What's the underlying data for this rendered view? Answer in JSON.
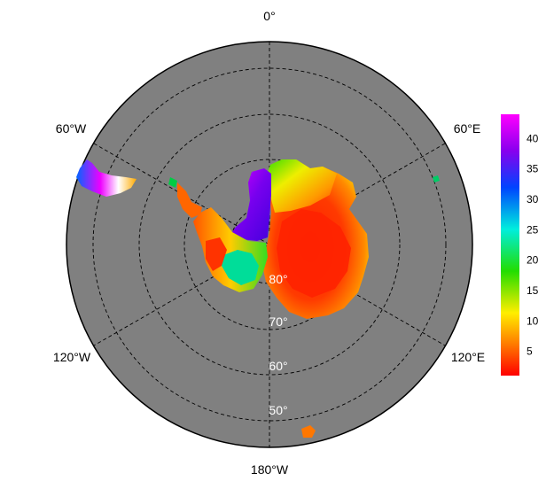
{
  "map": {
    "projection": "south-polar-stereographic",
    "background_color": "#808080",
    "grid_style": "dashed",
    "lon_labels": {
      "top": "0°",
      "upper_left": "60°W",
      "upper_right": "60°E",
      "lower_left": "120°W",
      "lower_right": "120°E",
      "bottom": "180°W"
    },
    "lat_labels": [
      "80°",
      "70°",
      "60°",
      "50°"
    ],
    "lat_circles": [
      80,
      70,
      60,
      50
    ]
  },
  "colorbar": {
    "ticks": [
      "5",
      "10",
      "15",
      "20",
      "25",
      "30",
      "35",
      "40"
    ],
    "min": 1,
    "max": 44,
    "colors": [
      "#ff0000",
      "#ff7f00",
      "#ffff00",
      "#00ff00",
      "#00ffff",
      "#0000ff",
      "#7f00ff",
      "#ff00ff"
    ]
  }
}
